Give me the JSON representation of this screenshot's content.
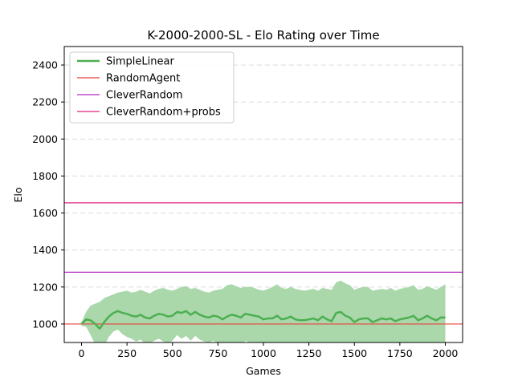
{
  "chart_data": {
    "type": "line",
    "title": "K-2000-2000-SL - Elo Rating over Time",
    "xlabel": "Games",
    "ylabel": "Elo",
    "xlim": [
      -95,
      2095
    ],
    "ylim": [
      900,
      2500
    ],
    "xticks": [
      0,
      250,
      500,
      750,
      1000,
      1250,
      1500,
      1750,
      2000
    ],
    "yticks": [
      1000,
      1200,
      1400,
      1600,
      1800,
      2000,
      2200,
      2400
    ],
    "grid": "y-dashed",
    "legend_position": "top-left",
    "series": [
      {
        "name": "SimpleLinear",
        "kind": "line-with-band",
        "color": "#4caf50",
        "band_color": "#a5d6a7",
        "x": [
          0,
          25,
          50,
          75,
          100,
          125,
          150,
          175,
          200,
          225,
          250,
          275,
          300,
          325,
          350,
          375,
          400,
          425,
          450,
          475,
          500,
          525,
          550,
          575,
          600,
          625,
          650,
          675,
          700,
          725,
          750,
          775,
          800,
          825,
          850,
          875,
          900,
          925,
          950,
          975,
          1000,
          1025,
          1050,
          1075,
          1100,
          1125,
          1150,
          1175,
          1200,
          1225,
          1250,
          1275,
          1300,
          1325,
          1350,
          1375,
          1400,
          1425,
          1450,
          1475,
          1500,
          1525,
          1550,
          1575,
          1600,
          1625,
          1650,
          1675,
          1700,
          1725,
          1750,
          1775,
          1800,
          1825,
          1850,
          1875,
          1900,
          1925,
          1950,
          1975,
          2000
        ],
        "values": [
          1000,
          1025,
          1020,
          1000,
          975,
          1010,
          1040,
          1060,
          1070,
          1060,
          1055,
          1045,
          1040,
          1050,
          1035,
          1030,
          1045,
          1055,
          1050,
          1040,
          1045,
          1065,
          1060,
          1070,
          1050,
          1065,
          1050,
          1040,
          1035,
          1045,
          1040,
          1025,
          1040,
          1050,
          1045,
          1035,
          1055,
          1050,
          1045,
          1040,
          1025,
          1030,
          1030,
          1045,
          1025,
          1030,
          1040,
          1025,
          1020,
          1020,
          1025,
          1030,
          1020,
          1040,
          1025,
          1015,
          1060,
          1065,
          1045,
          1035,
          1010,
          1025,
          1030,
          1030,
          1010,
          1020,
          1030,
          1025,
          1030,
          1015,
          1025,
          1030,
          1035,
          1045,
          1020,
          1030,
          1045,
          1030,
          1020,
          1035,
          1035
        ],
        "upper": [
          1010,
          1065,
          1100,
          1110,
          1120,
          1140,
          1150,
          1160,
          1170,
          1175,
          1180,
          1170,
          1175,
          1185,
          1175,
          1165,
          1180,
          1190,
          1195,
          1185,
          1180,
          1190,
          1200,
          1205,
          1190,
          1195,
          1185,
          1175,
          1170,
          1180,
          1185,
          1190,
          1210,
          1215,
          1205,
          1195,
          1200,
          1200,
          1195,
          1185,
          1180,
          1190,
          1200,
          1215,
          1195,
          1190,
          1200,
          1190,
          1185,
          1180,
          1185,
          1190,
          1180,
          1195,
          1190,
          1185,
          1225,
          1235,
          1220,
          1210,
          1185,
          1195,
          1200,
          1200,
          1180,
          1185,
          1190,
          1185,
          1195,
          1180,
          1190,
          1195,
          1200,
          1210,
          1185,
          1190,
          1205,
          1195,
          1185,
          1200,
          1215
        ],
        "lower": [
          990,
          985,
          940,
          890,
          830,
          880,
          930,
          960,
          970,
          945,
          930,
          920,
          905,
          915,
          895,
          895,
          910,
          920,
          905,
          895,
          910,
          940,
          920,
          935,
          910,
          935,
          915,
          905,
          900,
          910,
          895,
          860,
          870,
          885,
          885,
          875,
          910,
          900,
          895,
          895,
          870,
          870,
          860,
          875,
          855,
          870,
          880,
          860,
          855,
          860,
          865,
          870,
          860,
          885,
          860,
          845,
          895,
          895,
          870,
          860,
          835,
          855,
          860,
          860,
          840,
          855,
          870,
          865,
          865,
          850,
          860,
          865,
          870,
          880,
          855,
          870,
          885,
          865,
          855,
          870,
          855
        ]
      },
      {
        "name": "RandomAgent",
        "kind": "hline",
        "y": 1000,
        "color": "#e8453c"
      },
      {
        "name": "CleverRandom",
        "kind": "hline",
        "y": 1280,
        "color": "#b42bbf"
      },
      {
        "name": "CleverRandom+probs",
        "kind": "hline",
        "y": 1655,
        "color": "#e0227f"
      }
    ]
  }
}
